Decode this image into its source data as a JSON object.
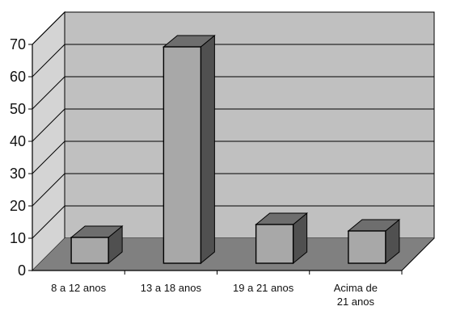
{
  "chart_data": {
    "type": "bar",
    "title": "",
    "xlabel": "",
    "ylabel": "",
    "categories": [
      "8 a 12 anos",
      "13 a 18 anos",
      "19 a 21 anos",
      "Acima de 21 anos"
    ],
    "category_lines": [
      [
        "8 a 12 anos"
      ],
      [
        "13 a 18 anos"
      ],
      [
        "19 a 21 anos"
      ],
      [
        "Acima de",
        "21 anos"
      ]
    ],
    "values": [
      8,
      67,
      12,
      10
    ],
    "ylim": [
      0,
      70
    ],
    "yticks": [
      "0",
      "10",
      "20",
      "30",
      "40",
      "50",
      "60",
      "70"
    ],
    "grid": true,
    "legend": "none",
    "three_d": true
  },
  "colors": {
    "wall": "#c0c0c0",
    "side_wall": "#d4d4d4",
    "floor": "#808080",
    "bar_front": "#a8a8a8",
    "bar_top": "#6e6e6e",
    "bar_side": "#505050",
    "grid": "#000000"
  }
}
